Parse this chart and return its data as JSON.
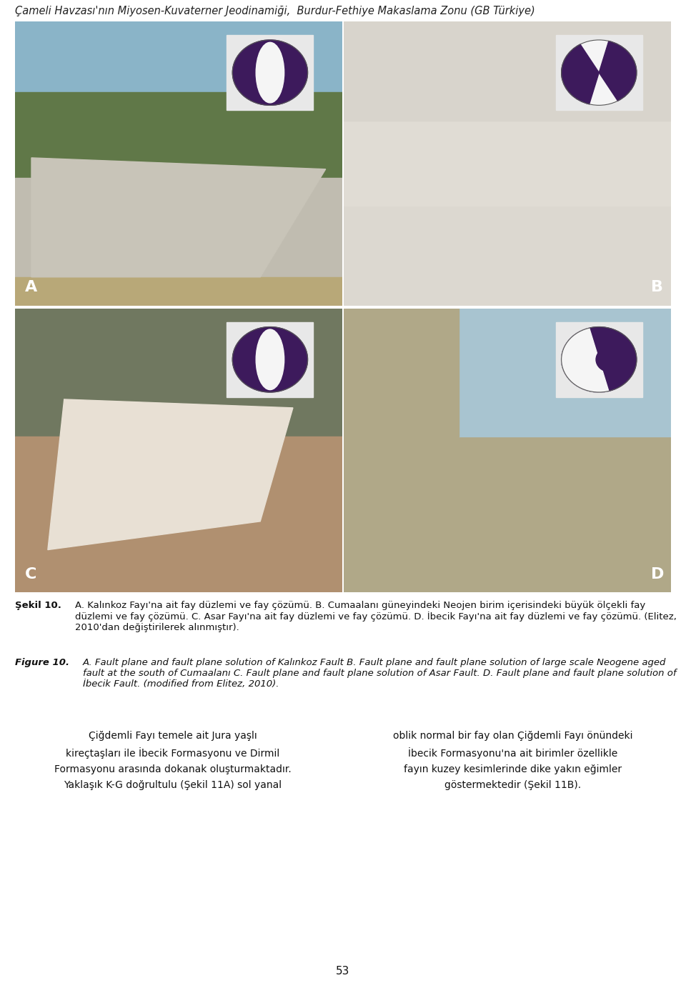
{
  "header_text": "Çameli Havzası'nın Miyosen-Kuvaterner Jeodinamiği,  Burdur-Fethiye Makaslama Zonu (GB Türkiye)",
  "header_color": "#222222",
  "header_fontsize": 10.5,
  "background_color": "#ffffff",
  "caption_turkish_label": "Şekil 10.",
  "caption_turkish_body": "A. Kalınkoz Fayı'na ait fay düzlemi ve fay çözümü. B. Cumaalanı güneyindeki Neojen birim içerisindeki büyük ölçekli fay düzlemi ve fay çözümü. C. Asar Fayı'na ait fay düzlemi ve fay çözümü. D. İbecik Fayı'na ait fay düzlemi ve fay çözümü. (Elitez, 2010'dan değiştirilerek alınmıştır).",
  "caption_english_label": "Figure 10.",
  "caption_english_body": "A. Fault plane and fault plane solution of Kalınkoz Fault B. Fault plane and fault plane solution of large scale Neogene aged fault at the south of Cumaalanı C. Fault plane and fault plane solution of Asar Fault. D. Fault plane and fault plane solution of İbecik Fault. (modified from Elitez, 2010).",
  "body_left": "Çiğdemli Fayı temele ait Jura yaşlı\nkireçtaşları ile İbecik Formasyonu ve Dirmil\nFormasyonu arasında dokanak oluşturmaktadır.\nYaklaşık K-G doğrultulu (Şekil 11A) sol yanal",
  "body_right": "oblik normal bir fay olan Çiğdemli Fayı önündeki\nİbecik Formasyonu'na ait birimler özellikle\nfayın kuzey kesimlerinde dike yakın eğimler\ngöstermektedir (Şekil 11B).",
  "body_fontsize": 10.0,
  "page_number": "53",
  "panel_A_bg": "#8a9078",
  "panel_A_sky": "#8ab0c8",
  "panel_A_rock": "#b0b0a8",
  "panel_A_ground": "#a89870",
  "panel_B_bg": "#d8d0c0",
  "panel_C_bg": "#907858",
  "panel_C_rock": "#e0d8c8",
  "panel_C_ground": "#c0a878",
  "panel_D_bg": "#b0a888",
  "panel_D_sky": "#90b0c0",
  "bb_dark": "#3d1a5c",
  "bb_light": "#f5f5f5",
  "bb_bg": "#e8e8e8",
  "label_A": "A",
  "label_B": "B",
  "label_C": "C",
  "label_D": "D",
  "label_fontsize": 16,
  "label_color": "#ffffff"
}
